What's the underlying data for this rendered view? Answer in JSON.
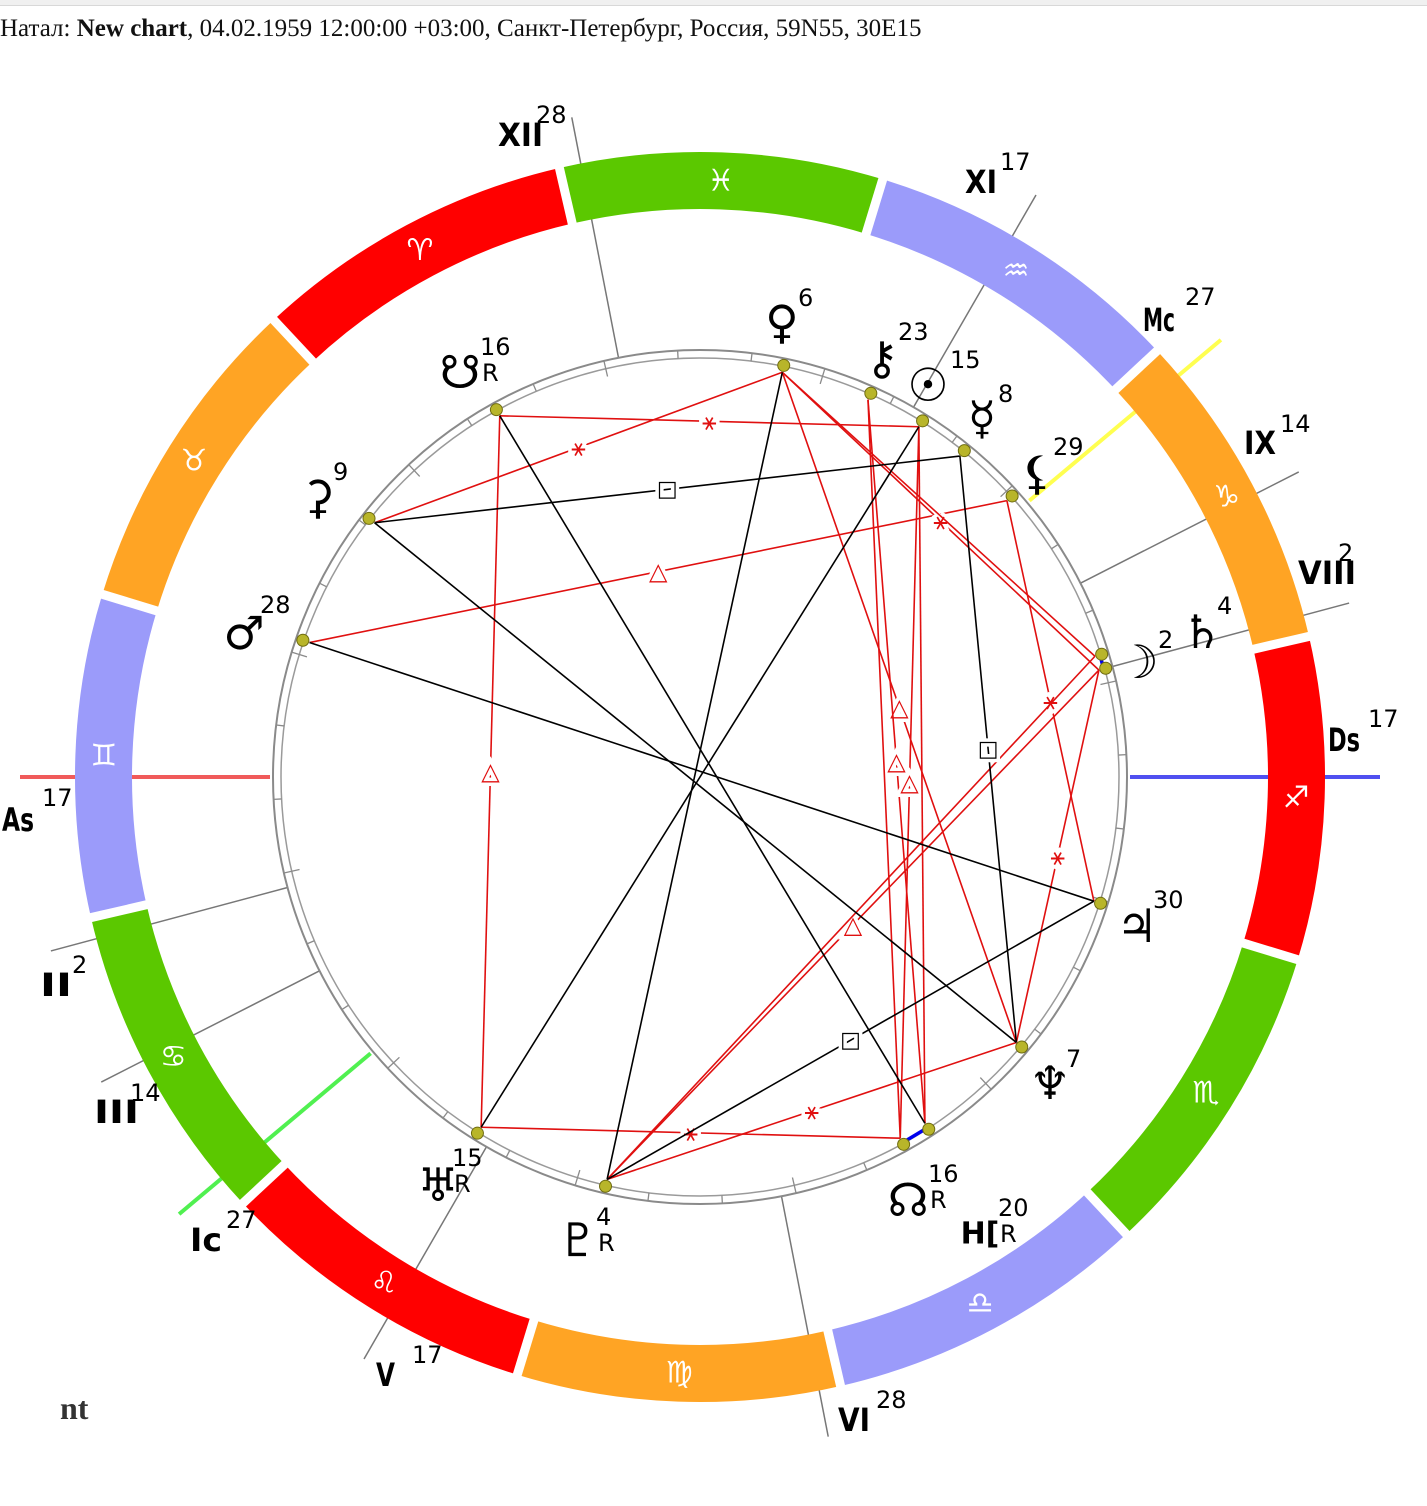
{
  "header": {
    "prefix": "Натал: ",
    "chart_name": "New chart",
    "details": ", 04.02.1959 12:00:00 +03:00, Санкт-Петербург, Россия, 59N55, 30E15"
  },
  "footer_text": "nt",
  "colors": {
    "fire": "#ff0000",
    "earth": "#ffa424",
    "air": "#9b9bfa",
    "water": "#5bc800",
    "aspect_harmonious": "#e01010",
    "aspect_tense": "#000000",
    "conjunction": "#0000ee",
    "planet_dot": "#b8b52a",
    "as_axis": "#f05a5a",
    "ds_axis": "#5050f0",
    "mc_axis": "#ffff50",
    "ic_axis": "#50f050"
  },
  "signs": [
    {
      "name": "aries",
      "glyph": "♈",
      "element": "fire"
    },
    {
      "name": "taurus",
      "glyph": "♉",
      "element": "earth"
    },
    {
      "name": "gemini",
      "glyph": "♊",
      "element": "air"
    },
    {
      "name": "cancer",
      "glyph": "♋",
      "element": "water"
    },
    {
      "name": "leo",
      "glyph": "♌",
      "element": "fire"
    },
    {
      "name": "virgo",
      "glyph": "♍",
      "element": "earth"
    },
    {
      "name": "libra",
      "glyph": "♎",
      "element": "air"
    },
    {
      "name": "scorpio",
      "glyph": "♏",
      "element": "water"
    },
    {
      "name": "sagittarius",
      "glyph": "♐",
      "element": "fire"
    },
    {
      "name": "capricorn",
      "glyph": "♑",
      "element": "earth"
    },
    {
      "name": "aquarius",
      "glyph": "♒",
      "element": "air"
    },
    {
      "name": "pisces",
      "glyph": "♓",
      "element": "water"
    }
  ],
  "houses": [
    {
      "id": "as",
      "label": "As",
      "degree": "17",
      "longitude": 77,
      "axis": "as"
    },
    {
      "id": "ii",
      "label": "II",
      "degree": "2",
      "longitude": 92
    },
    {
      "id": "iii",
      "label": "III",
      "degree": "14",
      "longitude": 104
    },
    {
      "id": "ic",
      "label": "Ic",
      "degree": "27",
      "longitude": 117,
      "axis": "ic"
    },
    {
      "id": "v",
      "label": "V",
      "degree": "17",
      "longitude": 137
    },
    {
      "id": "vi",
      "label": "VI",
      "degree": "28",
      "longitude": 178
    },
    {
      "id": "ds",
      "label": "Ds",
      "degree": "17",
      "longitude": 257,
      "axis": "ds"
    },
    {
      "id": "viii",
      "label": "VIII",
      "degree": "2",
      "longitude": 272
    },
    {
      "id": "ix",
      "label": "IX",
      "degree": "14",
      "longitude": 284
    },
    {
      "id": "mc",
      "label": "Mc",
      "degree": "27",
      "longitude": 297,
      "axis": "mc"
    },
    {
      "id": "xi",
      "label": "XI",
      "degree": "17",
      "longitude": 317
    },
    {
      "id": "xii",
      "label": "XII",
      "degree": "28",
      "longitude": 358
    }
  ],
  "planets": [
    {
      "id": "sun",
      "glyph": "☉",
      "degree": "15",
      "retro": "",
      "longitude": 315
    },
    {
      "id": "moon",
      "glyph": "☽",
      "degree": "2",
      "retro": "",
      "longitude": 272
    },
    {
      "id": "mercury",
      "glyph": "☿",
      "degree": "8",
      "retro": "",
      "longitude": 308
    },
    {
      "id": "venus",
      "glyph": "♀",
      "degree": "6",
      "retro": "",
      "longitude": 335.5
    },
    {
      "id": "mars",
      "glyph": "♂",
      "degree": "28",
      "retro": "",
      "longitude": 58
    },
    {
      "id": "jupiter",
      "glyph": "♃",
      "degree": "30",
      "retro": "",
      "longitude": 239.5
    },
    {
      "id": "saturn",
      "glyph": "♄",
      "degree": "4",
      "retro": "",
      "longitude": 274
    },
    {
      "id": "uranus",
      "glyph": "♅",
      "degree": "15",
      "retro": "R",
      "longitude": 135
    },
    {
      "id": "neptune",
      "glyph": "♆",
      "degree": "7",
      "retro": "",
      "longitude": 217
    },
    {
      "id": "pluto",
      "glyph": "♇",
      "degree": "4",
      "retro": "R",
      "longitude": 154
    },
    {
      "id": "north-node",
      "glyph": "☊",
      "degree": "16",
      "retro": "R",
      "longitude": 196
    },
    {
      "id": "south-node",
      "glyph": "☋",
      "degree": "16",
      "retro": "R",
      "longitude": 16
    },
    {
      "id": "chiron",
      "glyph": "⚷",
      "degree": "23",
      "retro": "",
      "longitude": 323
    },
    {
      "id": "ceres",
      "glyph": "⚳",
      "degree": "9",
      "retro": "",
      "longitude": 39
    },
    {
      "id": "lilith",
      "glyph": "⚸",
      "degree": "29",
      "retro": "",
      "longitude": 299
    },
    {
      "id": "point-h",
      "glyph": "H[",
      "degree": "20",
      "retro": "R",
      "longitude": 200
    }
  ],
  "aspects": [
    {
      "a": "south-node",
      "b": "sun",
      "type": "sextile",
      "symbol": "⚹",
      "tone": "aspect_harmonious"
    },
    {
      "a": "ceres",
      "b": "venus",
      "type": "sextile",
      "symbol": "⚹",
      "tone": "aspect_harmonious"
    },
    {
      "a": "mars",
      "b": "lilith",
      "type": "trine",
      "symbol": "△",
      "tone": "aspect_harmonious"
    },
    {
      "a": "south-node",
      "b": "uranus",
      "type": "trine",
      "symbol": "△",
      "tone": "aspect_harmonious"
    },
    {
      "a": "venus",
      "b": "moon",
      "type": "sextile",
      "symbol": "⚹",
      "tone": "aspect_harmonious"
    },
    {
      "a": "venus",
      "b": "saturn",
      "type": "sextile",
      "symbol": "",
      "tone": "aspect_harmonious"
    },
    {
      "a": "venus",
      "b": "neptune",
      "type": "trine",
      "symbol": "△",
      "tone": "aspect_harmonious"
    },
    {
      "a": "chiron",
      "b": "point-h",
      "type": "trine",
      "symbol": "△",
      "tone": "aspect_harmonious"
    },
    {
      "a": "sun",
      "b": "north-node",
      "type": "trine",
      "symbol": "△",
      "tone": "aspect_harmonious"
    },
    {
      "a": "chiron",
      "b": "north-node",
      "type": "trine",
      "symbol": "",
      "tone": "aspect_harmonious"
    },
    {
      "a": "sun",
      "b": "point-h",
      "type": "trine",
      "symbol": "",
      "tone": "aspect_harmonious"
    },
    {
      "a": "lilith",
      "b": "jupiter",
      "type": "sextile",
      "symbol": "⚹",
      "tone": "aspect_harmonious"
    },
    {
      "a": "moon",
      "b": "neptune",
      "type": "sextile",
      "symbol": "⚹",
      "tone": "aspect_harmonious"
    },
    {
      "a": "neptune",
      "b": "pluto",
      "type": "sextile",
      "symbol": "⚹",
      "tone": "aspect_harmonious"
    },
    {
      "a": "uranus",
      "b": "north-node",
      "type": "sextile",
      "symbol": "⚹",
      "tone": "aspect_harmonious"
    },
    {
      "a": "pluto",
      "b": "moon",
      "type": "trine",
      "symbol": "△",
      "tone": "aspect_harmonious"
    },
    {
      "a": "pluto",
      "b": "saturn",
      "type": "trine",
      "symbol": "",
      "tone": "aspect_harmonious"
    },
    {
      "a": "ceres",
      "b": "mercury",
      "type": "square",
      "symbol": "□",
      "tone": "aspect_tense"
    },
    {
      "a": "mercury",
      "b": "neptune",
      "type": "square",
      "symbol": "□",
      "tone": "aspect_tense"
    },
    {
      "a": "jupiter",
      "b": "pluto",
      "type": "square",
      "symbol": "□",
      "tone": "aspect_tense"
    },
    {
      "a": "ceres",
      "b": "neptune",
      "type": "opposition",
      "symbol": "",
      "tone": "aspect_tense"
    },
    {
      "a": "south-node",
      "b": "point-h",
      "type": "opposition",
      "symbol": "",
      "tone": "aspect_tense"
    },
    {
      "a": "mars",
      "b": "jupiter",
      "type": "opposition",
      "symbol": "",
      "tone": "aspect_tense"
    },
    {
      "a": "sun",
      "b": "uranus",
      "type": "opposition",
      "symbol": "",
      "tone": "aspect_tense"
    },
    {
      "a": "venus",
      "b": "pluto",
      "type": "opposition",
      "symbol": "",
      "tone": "aspect_tense"
    },
    {
      "a": "moon",
      "b": "saturn",
      "type": "conjunction",
      "symbol": "",
      "tone": "conjunction"
    },
    {
      "a": "north-node",
      "b": "point-h",
      "type": "conjunction",
      "symbol": "",
      "tone": "conjunction"
    }
  ]
}
